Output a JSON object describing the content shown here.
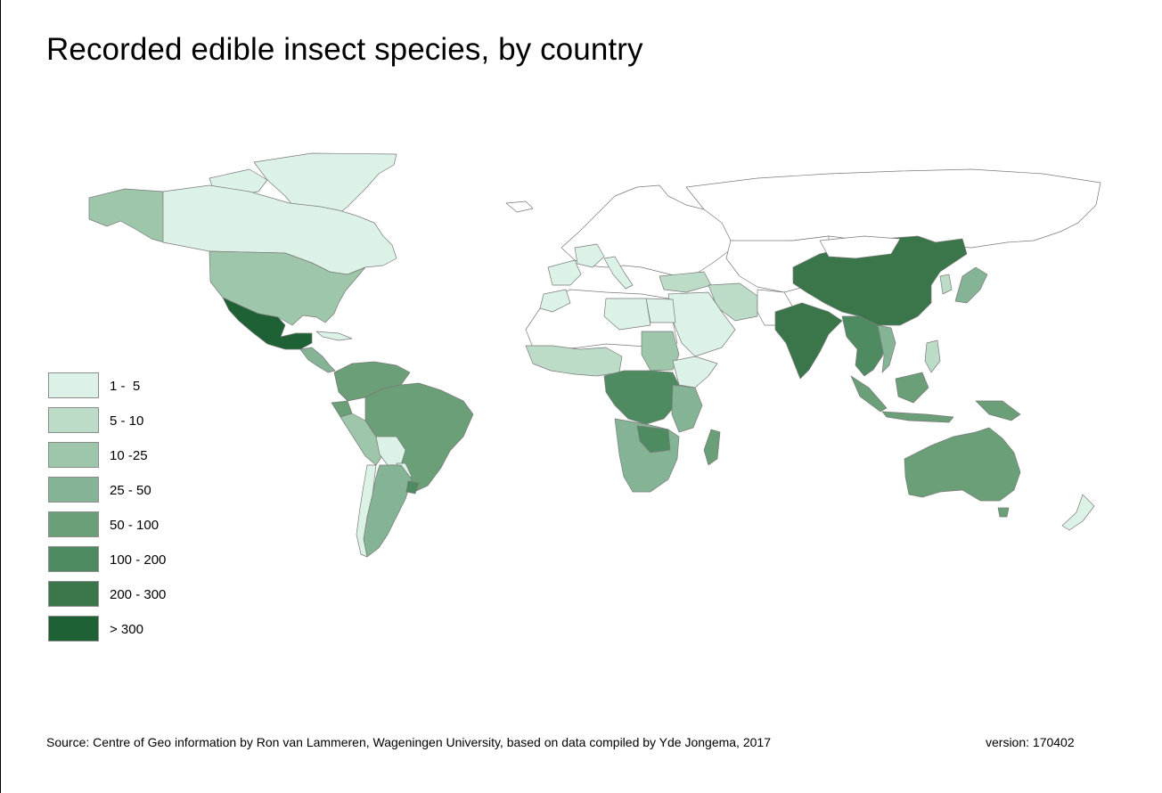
{
  "title": "Recorded edible insect species, by country",
  "legend": {
    "items": [
      {
        "label": "1 -  5",
        "color": "#dcf2e6"
      },
      {
        "label": "5 - 10",
        "color": "#bcdcc8"
      },
      {
        "label": "10 -25",
        "color": "#9dc6aa"
      },
      {
        "label": "25 - 50",
        "color": "#84b495"
      },
      {
        "label": "50 - 100",
        "color": "#6a9f78"
      },
      {
        "label": "100 - 200",
        "color": "#4f8b60"
      },
      {
        "label": "200 - 300",
        "color": "#3a764a"
      },
      {
        "label": "> 300",
        "color": "#1e6135"
      }
    ]
  },
  "footer": {
    "source": "Source: Centre of Geo information by Ron van Lammeren, Wageningen University, based on data compiled by Yde Jongema, 2017",
    "version": "version: 170402"
  }
}
